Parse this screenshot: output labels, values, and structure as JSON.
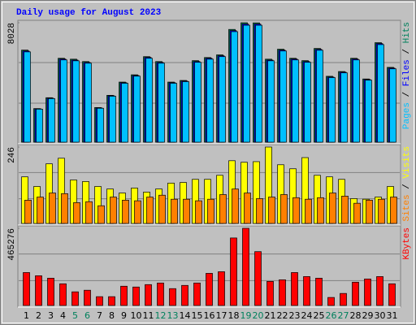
{
  "title": "Daily usage for August 2023",
  "chart_data": [
    {
      "type": "bar",
      "ylim": [
        0,
        8028
      ],
      "yticks": [
        8028
      ],
      "legend_separator": " / ",
      "series": [
        {
          "name": "Hits",
          "color": "#00805c",
          "values": [
            6190,
            2260,
            2990,
            5640,
            5580,
            5420,
            2330,
            3150,
            4040,
            4530,
            5750,
            5420,
            4040,
            4150,
            5480,
            5690,
            5870,
            7580,
            8028,
            8020,
            5580,
            6250,
            5640,
            5480,
            6300,
            4430,
            4750,
            5640,
            4250,
            6690,
            5030
          ]
        },
        {
          "name": "Files",
          "color": "#0000ff",
          "values": [
            6130,
            2240,
            2960,
            5590,
            5520,
            5360,
            2300,
            3120,
            4000,
            4480,
            5700,
            5360,
            4000,
            4110,
            5420,
            5640,
            5810,
            7500,
            7940,
            7940,
            5520,
            6190,
            5590,
            5420,
            6240,
            4380,
            4710,
            5590,
            4210,
            6630,
            4980
          ]
        },
        {
          "name": "Pages",
          "color": "#00c0ff",
          "values": [
            6070,
            2220,
            2930,
            5530,
            5470,
            5310,
            2280,
            3090,
            3960,
            4440,
            5640,
            5310,
            3960,
            4070,
            5370,
            5580,
            5750,
            7430,
            7860,
            7860,
            5470,
            6130,
            5530,
            5370,
            6180,
            4340,
            4660,
            5530,
            4170,
            6560,
            4930
          ]
        }
      ]
    },
    {
      "type": "bar",
      "ylim": [
        0,
        246
      ],
      "yticks": [
        246
      ],
      "legend_separator": " / ",
      "series": [
        {
          "name": "Visits",
          "color": "#ffff00",
          "values": [
            150,
            119,
            192,
            210,
            140,
            135,
            119,
            111,
            98,
            114,
            101,
            111,
            130,
            132,
            142,
            142,
            155,
            202,
            197,
            199,
            246,
            189,
            176,
            212,
            155,
            150,
            142,
            80,
            78,
            85,
            119
          ]
        },
        {
          "name": "Sites",
          "color": "#ff8000",
          "values": [
            75,
            85,
            98,
            96,
            67,
            70,
            57,
            85,
            75,
            73,
            85,
            91,
            78,
            78,
            73,
            78,
            93,
            111,
            98,
            80,
            85,
            93,
            83,
            78,
            83,
            98,
            88,
            65,
            75,
            78,
            85
          ]
        }
      ]
    },
    {
      "type": "bar",
      "ylim": [
        0,
        465276
      ],
      "yticks": [
        465276
      ],
      "legend_separator": " / ",
      "categories": [
        "1",
        "2",
        "3",
        "4",
        "5",
        "6",
        "7",
        "8",
        "9",
        "10",
        "11",
        "12",
        "13",
        "14",
        "15",
        "16",
        "17",
        "18",
        "19",
        "20",
        "21",
        "22",
        "23",
        "24",
        "25",
        "26",
        "27",
        "28",
        "29",
        "30",
        "31"
      ],
      "label_colors": [
        "#000",
        "#000",
        "#000",
        "#000",
        "#00805c",
        "#00805c",
        "#000",
        "#000",
        "#000",
        "#000",
        "#000",
        "#00805c",
        "#00805c",
        "#000",
        "#000",
        "#000",
        "#000",
        "#000",
        "#00805c",
        "#00805c",
        "#000",
        "#000",
        "#000",
        "#000",
        "#000",
        "#00805c",
        "#00805c",
        "#000",
        "#000",
        "#000",
        "#000"
      ],
      "series": [
        {
          "name": "KBytes",
          "color": "#ff0000",
          "values": [
            198700,
            179300,
            164800,
            130900,
            82400,
            92100,
            53300,
            53300,
            116300,
            111500,
            126000,
            135700,
            101800,
            121200,
            135700,
            193900,
            203600,
            407100,
            465276,
            324700,
            145400,
            155100,
            198700,
            174500,
            164800,
            48500,
            72700,
            140600,
            160000,
            174500,
            130900
          ]
        }
      ]
    }
  ]
}
